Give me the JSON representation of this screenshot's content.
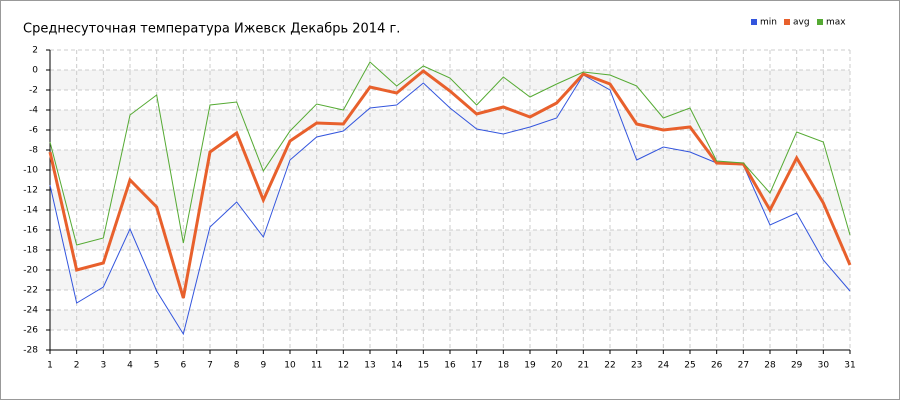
{
  "chart_data": {
    "type": "line",
    "title": "Среднесуточная температура Ижевск  Декабрь 2014 г.",
    "x": [
      1,
      2,
      3,
      4,
      5,
      6,
      7,
      8,
      9,
      10,
      11,
      12,
      13,
      14,
      15,
      16,
      17,
      18,
      19,
      20,
      21,
      22,
      23,
      24,
      25,
      26,
      27,
      28,
      29,
      30,
      31
    ],
    "xlim": [
      1,
      31
    ],
    "xticks": [
      1,
      2,
      3,
      4,
      5,
      6,
      7,
      8,
      9,
      10,
      11,
      12,
      13,
      14,
      15,
      16,
      17,
      18,
      19,
      20,
      21,
      22,
      23,
      24,
      25,
      26,
      27,
      28,
      29,
      30,
      31
    ],
    "ylim": [
      -28,
      2
    ],
    "yticks": [
      2,
      0,
      -2,
      -4,
      -6,
      -8,
      -10,
      -12,
      -14,
      -16,
      -18,
      -20,
      -22,
      -24,
      -26,
      -28
    ],
    "grid": true,
    "series": [
      {
        "name": "min",
        "color": "#3355dd",
        "values": [
          -11.5,
          -23.3,
          -21.7,
          -15.9,
          -22.1,
          -26.4,
          -15.7,
          -13.2,
          -16.7,
          -9.0,
          -6.7,
          -6.1,
          -3.8,
          -3.5,
          -1.3,
          -3.8,
          -5.9,
          -6.4,
          -5.7,
          -4.8,
          -0.5,
          -2.0,
          -9.0,
          -7.7,
          -8.2,
          -9.3,
          -9.5,
          -15.5,
          -14.3,
          -19.0,
          -22.1
        ]
      },
      {
        "name": "avg",
        "color": "#e8602c",
        "values": [
          -8.2,
          -20.0,
          -19.3,
          -11.0,
          -13.7,
          -22.8,
          -8.2,
          -6.3,
          -13.0,
          -7.1,
          -5.3,
          -5.4,
          -1.7,
          -2.3,
          -0.1,
          -2.1,
          -4.4,
          -3.7,
          -4.7,
          -3.3,
          -0.4,
          -1.4,
          -5.4,
          -6.0,
          -5.7,
          -9.3,
          -9.4,
          -14.0,
          -8.8,
          -13.3,
          -19.5
        ]
      },
      {
        "name": "max",
        "color": "#55aa33",
        "values": [
          -7.2,
          -17.5,
          -16.8,
          -4.5,
          -2.5,
          -17.3,
          -3.5,
          -3.2,
          -10.1,
          -6.1,
          -3.4,
          -4.0,
          0.8,
          -1.6,
          0.4,
          -0.8,
          -3.5,
          -0.7,
          -2.7,
          -1.4,
          -0.2,
          -0.5,
          -1.6,
          -4.8,
          -3.8,
          -9.1,
          -9.3,
          -12.3,
          -6.2,
          -7.2,
          -16.5
        ]
      }
    ]
  }
}
